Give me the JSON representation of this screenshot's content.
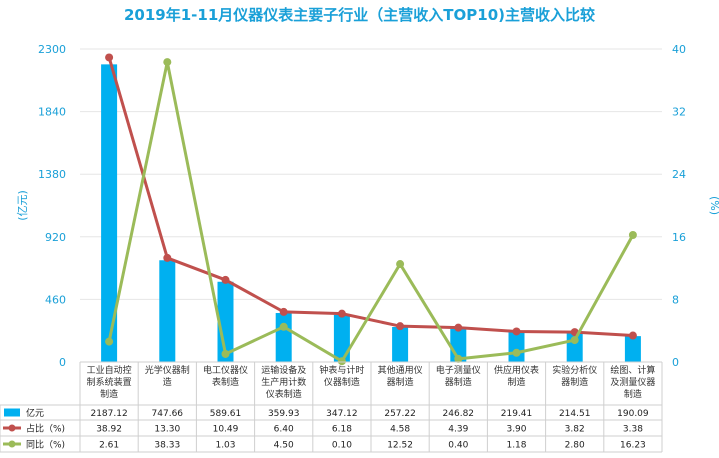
{
  "chart_data": {
    "type": "bar",
    "title": "2019年1-11月仪器仪表主要子行业（主营收入TOP10)主营收入比较",
    "categories": [
      [
        "工业自动控",
        "制系统装置",
        "制造"
      ],
      [
        "光学仪器制",
        "造"
      ],
      [
        "电工仪器仪",
        "表制造"
      ],
      [
        "运输设备及",
        "生产用计数",
        "仪表制造"
      ],
      [
        "钟表与计时",
        "仪器制造"
      ],
      [
        "其他通用仪",
        "器制造"
      ],
      [
        "电子测量仪",
        "器制造"
      ],
      [
        "供应用仪表",
        "制造"
      ],
      [
        "实验分析仪",
        "器制造"
      ],
      [
        "绘图、计算",
        "及测量仪器",
        "制造"
      ]
    ],
    "ylabel_left": "(亿元)",
    "ylabel_right": "(%)",
    "ylim_left": [
      0,
      2300
    ],
    "yticks_left": [
      "0",
      "460",
      "920",
      "1380",
      "1840",
      "2300"
    ],
    "ylim_right": [
      0,
      40
    ],
    "yticks_right": [
      "0",
      "8",
      "16",
      "24",
      "32",
      "40"
    ],
    "grid": true,
    "legend_position": "table-below",
    "series": [
      {
        "name": "亿元",
        "type": "bar",
        "axis": "left",
        "color": "#00b0f0",
        "values": [
          2187.12,
          747.66,
          589.61,
          359.93,
          347.12,
          257.22,
          246.82,
          219.41,
          214.51,
          190.09
        ],
        "labels": [
          "2187.12",
          "747.66",
          "589.61",
          "359.93",
          "347.12",
          "257.22",
          "246.82",
          "219.41",
          "214.51",
          "190.09"
        ]
      },
      {
        "name": "占比（%)",
        "type": "line",
        "axis": "right",
        "color": "#c0504d",
        "values": [
          38.92,
          13.3,
          10.49,
          6.4,
          6.18,
          4.58,
          4.39,
          3.9,
          3.82,
          3.38
        ],
        "labels": [
          "38.92",
          "13.30",
          "10.49",
          "6.40",
          "6.18",
          "4.58",
          "4.39",
          "3.90",
          "3.82",
          "3.38"
        ]
      },
      {
        "name": "同比（%)",
        "type": "line",
        "axis": "right",
        "color": "#9bbb59",
        "values": [
          2.61,
          38.33,
          1.03,
          4.5,
          0.1,
          12.52,
          0.4,
          1.18,
          2.8,
          16.23
        ],
        "labels": [
          "2.61",
          "38.33",
          "1.03",
          "4.50",
          "0.10",
          "12.52",
          "0.40",
          "1.18",
          "2.80",
          "16.23"
        ]
      }
    ]
  }
}
